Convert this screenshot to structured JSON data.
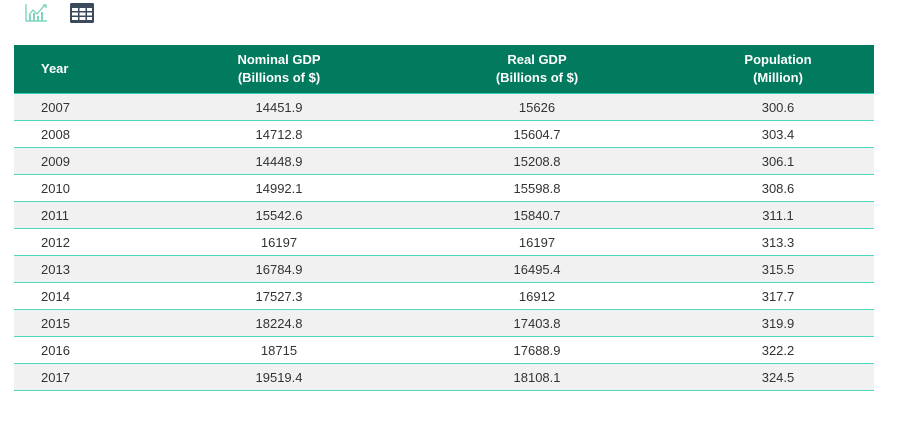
{
  "toolbar": {
    "chart_view_icon": "line-chart-icon",
    "table_view_icon": "table-grid-icon",
    "accent_inactive": "#7fd4bf",
    "accent_active": "#3a4a5c"
  },
  "table": {
    "header_color": "#017a5e",
    "row_alt_color": "#f1f1f1",
    "divider_color": "#4fd8bd",
    "columns": [
      {
        "line1": "Year",
        "line2": ""
      },
      {
        "line1": "Nominal GDP",
        "line2": "(Billions of $)"
      },
      {
        "line1": "Real GDP",
        "line2": "(Billions of $)"
      },
      {
        "line1": "Population",
        "line2": "(Million)"
      }
    ],
    "rows": [
      [
        "2007",
        "14451.9",
        "15626",
        "300.6"
      ],
      [
        "2008",
        "14712.8",
        "15604.7",
        "303.4"
      ],
      [
        "2009",
        "14448.9",
        "15208.8",
        "306.1"
      ],
      [
        "2010",
        "14992.1",
        "15598.8",
        "308.6"
      ],
      [
        "2011",
        "15542.6",
        "15840.7",
        "311.1"
      ],
      [
        "2012",
        "16197",
        "16197",
        "313.3"
      ],
      [
        "2013",
        "16784.9",
        "16495.4",
        "315.5"
      ],
      [
        "2014",
        "17527.3",
        "16912",
        "317.7"
      ],
      [
        "2015",
        "18224.8",
        "17403.8",
        "319.9"
      ],
      [
        "2016",
        "18715",
        "17688.9",
        "322.2"
      ],
      [
        "2017",
        "19519.4",
        "18108.1",
        "324.5"
      ]
    ]
  }
}
